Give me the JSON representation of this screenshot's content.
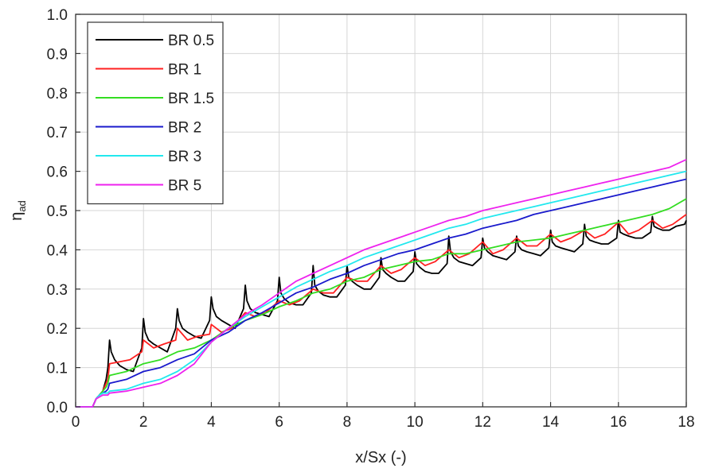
{
  "chart_data": {
    "type": "line",
    "xlabel": "x/Sx (-)",
    "ylabel_main": "η",
    "ylabel_sub": "ad",
    "xlim": [
      0,
      18
    ],
    "ylim": [
      0,
      1.0
    ],
    "x_ticks": [
      "0",
      "2",
      "4",
      "6",
      "8",
      "10",
      "12",
      "14",
      "16",
      "18"
    ],
    "y_ticks": [
      "0.0",
      "0.1",
      "0.2",
      "0.3",
      "0.4",
      "0.5",
      "0.6",
      "0.7",
      "0.8",
      "0.9",
      "1.0"
    ],
    "grid": true,
    "legend_position": "top-left",
    "series": [
      {
        "name": "BR 0.5",
        "color": "#000000",
        "x": [
          0,
          0.5,
          0.6,
          0.7,
          0.8,
          0.9,
          0.95,
          1.0,
          1.05,
          1.15,
          1.3,
          1.5,
          1.7,
          1.95,
          2.0,
          2.05,
          2.15,
          2.3,
          2.5,
          2.7,
          2.95,
          3.0,
          3.05,
          3.15,
          3.3,
          3.5,
          3.7,
          3.95,
          4.0,
          4.05,
          4.15,
          4.3,
          4.5,
          4.7,
          4.95,
          5.0,
          5.05,
          5.15,
          5.3,
          5.5,
          5.7,
          5.95,
          6.0,
          6.05,
          6.15,
          6.3,
          6.5,
          6.7,
          6.95,
          7.0,
          7.05,
          7.15,
          7.3,
          7.5,
          7.7,
          7.95,
          8.0,
          8.05,
          8.15,
          8.3,
          8.5,
          8.7,
          8.95,
          9.0,
          9.05,
          9.15,
          9.3,
          9.5,
          9.7,
          9.95,
          10.0,
          10.05,
          10.15,
          10.3,
          10.5,
          10.7,
          10.95,
          11.0,
          11.05,
          11.15,
          11.3,
          11.5,
          11.7,
          11.95,
          12.0,
          12.05,
          12.15,
          12.3,
          12.5,
          12.7,
          12.95,
          13.0,
          13.05,
          13.15,
          13.3,
          13.5,
          13.7,
          13.95,
          14.0,
          14.05,
          14.15,
          14.3,
          14.5,
          14.7,
          14.95,
          15.0,
          15.05,
          15.15,
          15.3,
          15.5,
          15.7,
          15.95,
          16.0,
          16.05,
          16.15,
          16.3,
          16.5,
          16.7,
          16.95,
          17.0,
          17.05,
          17.15,
          17.3,
          17.5,
          17.7,
          17.95,
          18.0
        ],
        "y": [
          0,
          0,
          0.02,
          0.03,
          0.04,
          0.07,
          0.1,
          0.17,
          0.14,
          0.12,
          0.105,
          0.095,
          0.09,
          0.15,
          0.225,
          0.19,
          0.17,
          0.16,
          0.15,
          0.14,
          0.2,
          0.25,
          0.22,
          0.2,
          0.19,
          0.18,
          0.175,
          0.22,
          0.28,
          0.25,
          0.23,
          0.22,
          0.21,
          0.2,
          0.25,
          0.31,
          0.27,
          0.25,
          0.24,
          0.235,
          0.23,
          0.27,
          0.33,
          0.29,
          0.275,
          0.265,
          0.26,
          0.26,
          0.29,
          0.36,
          0.31,
          0.295,
          0.285,
          0.28,
          0.28,
          0.31,
          0.36,
          0.33,
          0.32,
          0.31,
          0.3,
          0.3,
          0.33,
          0.38,
          0.35,
          0.34,
          0.33,
          0.32,
          0.32,
          0.345,
          0.395,
          0.365,
          0.355,
          0.345,
          0.34,
          0.34,
          0.365,
          0.435,
          0.395,
          0.38,
          0.37,
          0.365,
          0.36,
          0.38,
          0.43,
          0.405,
          0.395,
          0.385,
          0.38,
          0.375,
          0.395,
          0.435,
          0.41,
          0.4,
          0.395,
          0.39,
          0.385,
          0.405,
          0.45,
          0.42,
          0.41,
          0.405,
          0.4,
          0.395,
          0.415,
          0.465,
          0.435,
          0.425,
          0.42,
          0.415,
          0.415,
          0.43,
          0.475,
          0.445,
          0.44,
          0.435,
          0.43,
          0.43,
          0.445,
          0.485,
          0.46,
          0.455,
          0.45,
          0.45,
          0.46,
          0.465,
          0.475
        ]
      },
      {
        "name": "BR 1",
        "color": "#ff2020",
        "x": [
          0,
          0.5,
          0.6,
          0.7,
          0.8,
          0.9,
          0.95,
          1.0,
          1.3,
          1.6,
          1.95,
          2.0,
          2.3,
          2.6,
          2.95,
          3.0,
          3.3,
          3.6,
          3.95,
          4.0,
          4.3,
          4.6,
          5.0,
          5.3,
          5.6,
          6.0,
          6.3,
          6.6,
          7.0,
          7.3,
          7.6,
          8.0,
          8.3,
          8.6,
          9.0,
          9.3,
          9.6,
          10.0,
          10.3,
          10.6,
          11.0,
          11.3,
          11.6,
          12.0,
          12.3,
          12.6,
          13.0,
          13.3,
          13.6,
          14.0,
          14.3,
          14.6,
          15.0,
          15.3,
          15.6,
          16.0,
          16.3,
          16.6,
          17.0,
          17.3,
          17.6,
          18.0
        ],
        "y": [
          0,
          0,
          0.02,
          0.03,
          0.04,
          0.06,
          0.07,
          0.11,
          0.115,
          0.12,
          0.14,
          0.17,
          0.15,
          0.16,
          0.17,
          0.2,
          0.17,
          0.18,
          0.185,
          0.21,
          0.19,
          0.2,
          0.24,
          0.23,
          0.24,
          0.27,
          0.26,
          0.27,
          0.3,
          0.29,
          0.29,
          0.33,
          0.32,
          0.32,
          0.36,
          0.34,
          0.35,
          0.38,
          0.36,
          0.37,
          0.4,
          0.38,
          0.39,
          0.42,
          0.39,
          0.4,
          0.43,
          0.41,
          0.41,
          0.44,
          0.42,
          0.43,
          0.45,
          0.43,
          0.44,
          0.47,
          0.44,
          0.45,
          0.475,
          0.455,
          0.465,
          0.49
        ]
      },
      {
        "name": "BR 1.5",
        "color": "#33dd22",
        "x": [
          0,
          0.5,
          0.6,
          0.7,
          0.8,
          0.9,
          0.95,
          1.0,
          1.5,
          2.0,
          2.5,
          3.0,
          3.5,
          4.0,
          4.5,
          5.0,
          5.5,
          6.0,
          6.5,
          7.0,
          7.5,
          8.0,
          8.5,
          9.0,
          9.5,
          10.0,
          10.5,
          11.0,
          11.5,
          12.0,
          12.5,
          13.0,
          13.5,
          14.0,
          14.5,
          15.0,
          15.5,
          16.0,
          16.5,
          17.0,
          17.5,
          18.0
        ],
        "y": [
          0,
          0,
          0.02,
          0.03,
          0.04,
          0.05,
          0.06,
          0.08,
          0.09,
          0.11,
          0.12,
          0.14,
          0.15,
          0.17,
          0.2,
          0.22,
          0.235,
          0.255,
          0.27,
          0.29,
          0.3,
          0.32,
          0.33,
          0.35,
          0.36,
          0.37,
          0.375,
          0.39,
          0.39,
          0.4,
          0.41,
          0.42,
          0.425,
          0.43,
          0.44,
          0.45,
          0.46,
          0.47,
          0.48,
          0.49,
          0.505,
          0.53
        ]
      },
      {
        "name": "BR 2",
        "color": "#1a1acc",
        "x": [
          0,
          0.5,
          0.6,
          0.7,
          0.8,
          0.9,
          0.95,
          1.0,
          1.5,
          2.0,
          2.5,
          3.0,
          3.5,
          4.0,
          4.5,
          5.0,
          5.5,
          6.0,
          6.5,
          7.0,
          7.5,
          8.0,
          8.5,
          9.0,
          9.5,
          10.0,
          10.5,
          11.0,
          11.5,
          12.0,
          12.5,
          13.0,
          13.5,
          14.0,
          14.5,
          15.0,
          15.5,
          16.0,
          16.5,
          17.0,
          17.5,
          18.0
        ],
        "y": [
          0,
          0,
          0.02,
          0.03,
          0.035,
          0.04,
          0.045,
          0.06,
          0.07,
          0.09,
          0.1,
          0.12,
          0.135,
          0.17,
          0.19,
          0.22,
          0.24,
          0.265,
          0.29,
          0.305,
          0.325,
          0.34,
          0.36,
          0.375,
          0.39,
          0.4,
          0.415,
          0.43,
          0.44,
          0.455,
          0.465,
          0.475,
          0.49,
          0.5,
          0.51,
          0.52,
          0.53,
          0.54,
          0.55,
          0.56,
          0.57,
          0.58
        ]
      },
      {
        "name": "BR 3",
        "color": "#22e8ee",
        "x": [
          0,
          0.5,
          0.6,
          0.7,
          0.8,
          0.9,
          0.95,
          1.0,
          1.5,
          2.0,
          2.5,
          3.0,
          3.5,
          4.0,
          4.5,
          5.0,
          5.5,
          6.0,
          6.5,
          7.0,
          7.5,
          8.0,
          8.5,
          9.0,
          9.5,
          10.0,
          10.5,
          11.0,
          11.5,
          12.0,
          12.5,
          13.0,
          13.5,
          14.0,
          14.5,
          15.0,
          15.5,
          16.0,
          16.5,
          17.0,
          17.5,
          18.0
        ],
        "y": [
          0,
          0,
          0.02,
          0.03,
          0.035,
          0.035,
          0.035,
          0.04,
          0.045,
          0.06,
          0.07,
          0.09,
          0.12,
          0.165,
          0.2,
          0.23,
          0.255,
          0.28,
          0.305,
          0.325,
          0.345,
          0.36,
          0.38,
          0.395,
          0.41,
          0.425,
          0.44,
          0.455,
          0.465,
          0.48,
          0.49,
          0.5,
          0.51,
          0.52,
          0.53,
          0.54,
          0.55,
          0.56,
          0.57,
          0.58,
          0.59,
          0.6
        ]
      },
      {
        "name": "BR 5",
        "color": "#ee22ee",
        "x": [
          0,
          0.5,
          0.6,
          0.7,
          0.8,
          0.9,
          0.95,
          1.0,
          1.5,
          2.0,
          2.5,
          3.0,
          3.5,
          4.0,
          4.5,
          5.0,
          5.5,
          6.0,
          6.5,
          7.0,
          7.5,
          8.0,
          8.5,
          9.0,
          9.5,
          10.0,
          10.5,
          11.0,
          11.5,
          12.0,
          12.5,
          13.0,
          13.5,
          14.0,
          14.5,
          15.0,
          15.5,
          16.0,
          16.5,
          17.0,
          17.5,
          18.0
        ],
        "y": [
          0,
          0,
          0.02,
          0.025,
          0.03,
          0.03,
          0.03,
          0.035,
          0.04,
          0.05,
          0.06,
          0.08,
          0.11,
          0.165,
          0.2,
          0.235,
          0.26,
          0.29,
          0.32,
          0.34,
          0.36,
          0.38,
          0.4,
          0.415,
          0.43,
          0.445,
          0.46,
          0.475,
          0.485,
          0.5,
          0.51,
          0.52,
          0.53,
          0.54,
          0.55,
          0.56,
          0.57,
          0.58,
          0.59,
          0.6,
          0.61,
          0.63
        ]
      }
    ]
  }
}
